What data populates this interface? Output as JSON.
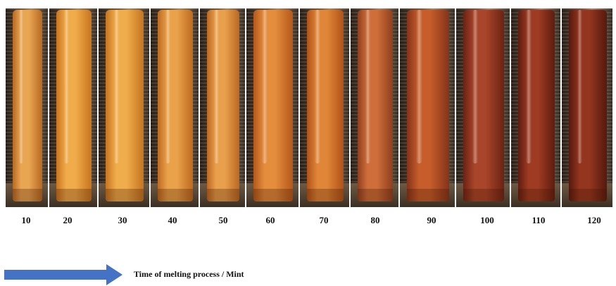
{
  "samples": [
    {
      "label": "10",
      "color_light": "#e8a552",
      "color_dark": "#b86a22"
    },
    {
      "label": "20",
      "color_light": "#f0ab4a",
      "color_dark": "#c8741e"
    },
    {
      "label": "30",
      "color_light": "#f0ad4c",
      "color_dark": "#c5741f"
    },
    {
      "label": "40",
      "color_light": "#eaa24a",
      "color_dark": "#be6a20"
    },
    {
      "label": "50",
      "color_light": "#e9a04c",
      "color_dark": "#bb6822"
    },
    {
      "label": "60",
      "color_light": "#e38d3d",
      "color_dark": "#b5581a"
    },
    {
      "label": "70",
      "color_light": "#e08638",
      "color_dark": "#b05218"
    },
    {
      "label": "80",
      "color_light": "#cf6e3a",
      "color_dark": "#8f3f1e"
    },
    {
      "label": "90",
      "color_light": "#c65d2a",
      "color_dark": "#84331a"
    },
    {
      "label": "100",
      "color_light": "#a9452a",
      "color_dark": "#6b2214"
    },
    {
      "label": "110",
      "color_light": "#9e3b22",
      "color_dark": "#5e1c10"
    },
    {
      "label": "120",
      "color_light": "#93351f",
      "color_dark": "#55190e"
    }
  ],
  "arrow_color": "#4472c4",
  "caption": "Time of melting process / Mint"
}
